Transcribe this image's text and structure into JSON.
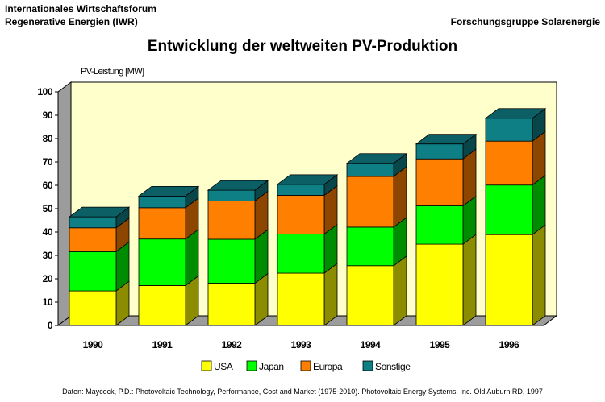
{
  "header": {
    "org_line1": "Internationales Wirtschaftsforum",
    "org_line2": "Regenerative Energien (IWR)",
    "right_text": "Forschungsgruppe Solarenergie"
  },
  "footer": {
    "source": "Daten: Maycock, P.D.: Photovoltaic Technology, Performance, Cost and Market (1975-2010). Photovoltaic Energy Systems, Inc. Old Auburn RD, 1997"
  },
  "colors": {
    "USA": "#ffff00",
    "Japan": "#00ff00",
    "Europa": "#ff8000",
    "Sonstige": "#0f7f86",
    "plot_wall": "#ffffcc"
  },
  "chart_data": {
    "type": "bar",
    "stacked": true,
    "three_d": true,
    "title": "Entwicklung der weltweiten PV-Produktion",
    "ylabel": "PV-Leistung [MW]",
    "xlabel": "",
    "ylim": [
      0,
      100
    ],
    "yticks": [
      0,
      10,
      20,
      30,
      40,
      50,
      60,
      70,
      80,
      90,
      100
    ],
    "categories": [
      "1990",
      "1991",
      "1992",
      "1993",
      "1994",
      "1995",
      "1996"
    ],
    "series": [
      {
        "name": "USA",
        "values": [
          14.8,
          17.1,
          18.1,
          22.4,
          25.6,
          34.8,
          38.9
        ]
      },
      {
        "name": "Japan",
        "values": [
          16.8,
          19.9,
          18.8,
          16.7,
          16.5,
          16.4,
          21.2
        ]
      },
      {
        "name": "Europa",
        "values": [
          10.2,
          13.4,
          16.4,
          16.6,
          21.7,
          20.1,
          18.8
        ]
      },
      {
        "name": "Sonstige",
        "values": [
          4.7,
          5.0,
          4.6,
          4.7,
          5.6,
          6.4,
          9.8
        ]
      }
    ],
    "legend_position": "bottom",
    "grid": false
  }
}
